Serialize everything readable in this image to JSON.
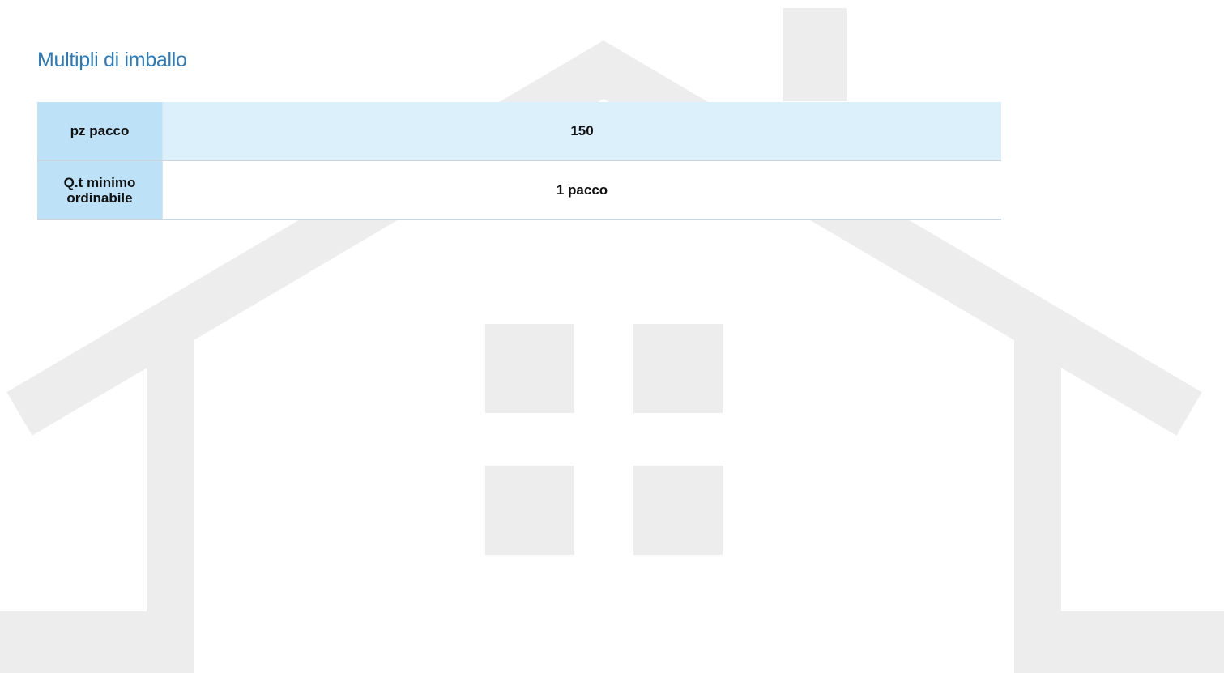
{
  "header": {
    "title": "Multipli di imballo"
  },
  "table": {
    "rows": [
      [
        "pz pacco",
        "150"
      ],
      [
        "Q.t minimo ordinabile",
        "1 pacco"
      ]
    ]
  }
}
